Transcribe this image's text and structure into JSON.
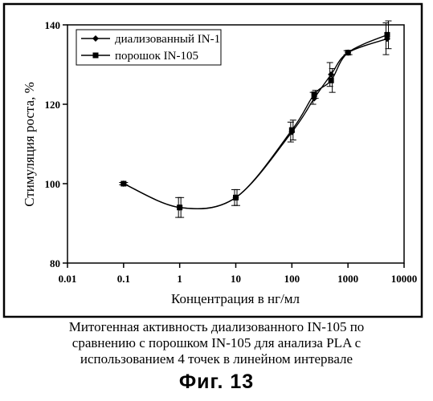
{
  "chart_data": {
    "type": "line",
    "xscale": "log",
    "xlim": [
      0.01,
      10000
    ],
    "ylim": [
      80,
      140
    ],
    "xticks": [
      0.01,
      0.1,
      1,
      10,
      100,
      1000,
      10000
    ],
    "xtick_labels": [
      "0.01",
      "0.1",
      "1",
      "10",
      "100",
      "1000",
      "10000"
    ],
    "yticks": [
      80,
      100,
      120,
      140
    ],
    "ytick_labels": [
      "80",
      "100",
      "120",
      "140"
    ],
    "xlabel": "Концентрация в нг/мл",
    "ylabel": "Стимуляция роста, %",
    "grid": false,
    "legend_position": "top-left",
    "series": [
      {
        "name": "диализованный IN-1",
        "marker": "diamond",
        "x": [
          0.1,
          1,
          10,
          100,
          250,
          500,
          1000,
          5000
        ],
        "y": [
          100,
          94,
          96.5,
          113,
          121.5,
          127.5,
          133,
          136.5
        ],
        "err": [
          0.3,
          2.5,
          2,
          2.5,
          1.5,
          3,
          0.5,
          4
        ]
      },
      {
        "name": "порошок IN-105",
        "marker": "square",
        "x": [
          0.1,
          1,
          10,
          100,
          250,
          500,
          1000,
          5000
        ],
        "y": [
          100,
          94,
          96.5,
          113.5,
          122.5,
          126,
          133,
          137.5
        ],
        "err": [
          0.3,
          2.5,
          2,
          2.5,
          1,
          3,
          0.5,
          3.5
        ]
      }
    ],
    "colors": {
      "line": "#000000",
      "frame": "#000000"
    }
  },
  "caption": {
    "line1": "Митогенная активность диализованного IN-105 по",
    "line2": "сравнению с порошком IN-105 для анализа PLA с",
    "line3": "использованием 4 точек в линейном интервале"
  },
  "figure_label": "Фиг.  13"
}
